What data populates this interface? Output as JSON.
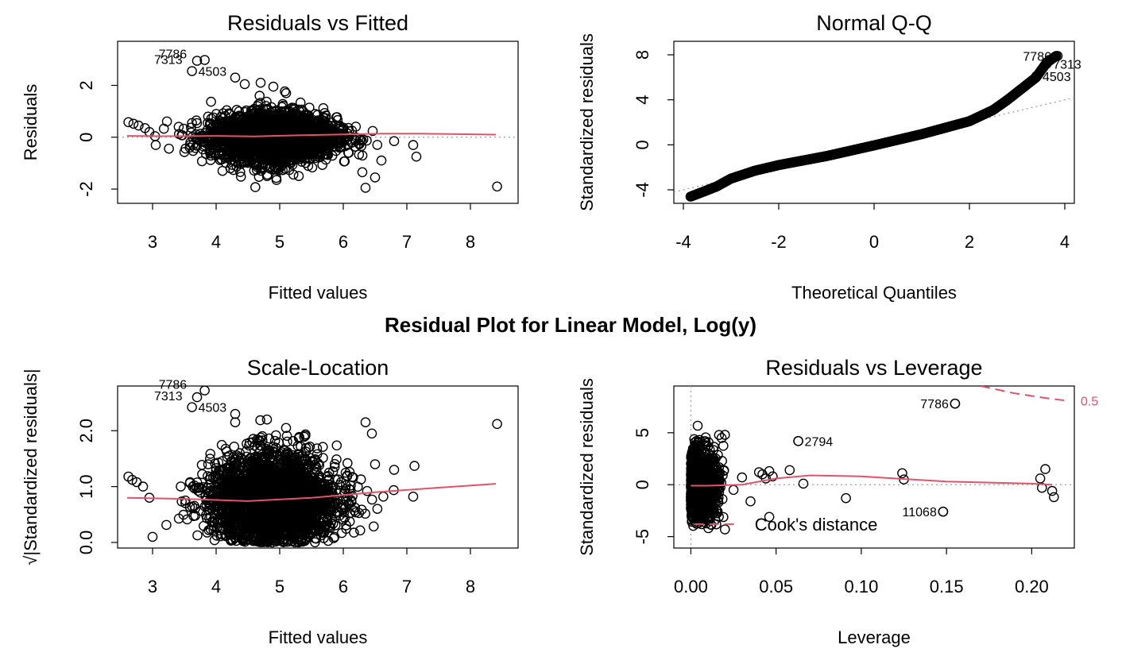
{
  "figure": {
    "main_title": "Residual Plot for Linear Model, Log(y)",
    "colors": {
      "points": "#000000",
      "smooth": "#df536b",
      "reference": "#9e9e9e",
      "cook": "#df536b"
    }
  },
  "chart_data": [
    {
      "type": "scatter",
      "title": "Residuals vs Fitted",
      "xlabel": "Fitted values",
      "ylabel": "Residuals",
      "xlim": [
        2.45,
        8.75
      ],
      "ylim": [
        -2.55,
        3.7
      ],
      "xticks": [
        3,
        4,
        5,
        6,
        7,
        8
      ],
      "yticks": [
        -2,
        0,
        2
      ],
      "reference_line": {
        "y": 0,
        "style": "dotted"
      },
      "cloud": {
        "x_range": [
          3.0,
          6.7
        ],
        "center": 4.9,
        "spread": 0.9,
        "y_sd": 0.45,
        "n": 2600
      },
      "smooth": {
        "x": [
          2.6,
          3.2,
          4.0,
          4.6,
          5.2,
          6.0,
          6.6,
          7.2,
          8.4
        ],
        "y": [
          0.05,
          0.04,
          0.05,
          0.03,
          0.07,
          0.11,
          0.14,
          0.14,
          0.1
        ]
      },
      "outliers": [
        {
          "x": 2.62,
          "y": 0.58
        },
        {
          "x": 2.7,
          "y": 0.52
        },
        {
          "x": 2.78,
          "y": 0.45
        },
        {
          "x": 2.88,
          "y": 0.35
        },
        {
          "x": 2.95,
          "y": 0.2
        },
        {
          "x": 3.05,
          "y": -0.3
        },
        {
          "x": 4.3,
          "y": 2.3
        },
        {
          "x": 4.7,
          "y": 2.1
        },
        {
          "x": 4.9,
          "y": 1.95
        },
        {
          "x": 5.1,
          "y": 1.7
        },
        {
          "x": 4.45,
          "y": 2.05
        },
        {
          "x": 6.3,
          "y": -1.35
        },
        {
          "x": 6.35,
          "y": -1.95
        },
        {
          "x": 6.5,
          "y": -1.55
        },
        {
          "x": 6.6,
          "y": -0.9
        },
        {
          "x": 6.8,
          "y": -0.15
        },
        {
          "x": 7.1,
          "y": -0.3
        },
        {
          "x": 7.15,
          "y": -0.75
        },
        {
          "x": 8.42,
          "y": -1.9
        },
        {
          "x": 4.95,
          "y": -1.65
        },
        {
          "x": 5.3,
          "y": -1.5
        },
        {
          "x": 4.1,
          "y": -1.3
        }
      ],
      "labeled_points": [
        {
          "label": "7786",
          "x": 3.82,
          "y": 2.98
        },
        {
          "label": "7313",
          "x": 3.7,
          "y": 2.95
        },
        {
          "label": "4503",
          "x": 3.62,
          "y": 2.55
        }
      ]
    },
    {
      "type": "scatter",
      "title": "Normal Q-Q",
      "xlabel": "Theoretical Quantiles",
      "ylabel": "Standardized residuals",
      "xlim": [
        -4.2,
        4.2
      ],
      "ylim": [
        -5.2,
        9.2
      ],
      "xticks": [
        -4,
        -2,
        0,
        2,
        4
      ],
      "yticks": [
        -4,
        0,
        4,
        8
      ],
      "reference_line": {
        "slope": 1.0,
        "intercept": 0.0,
        "style": "dotted"
      },
      "qq_curve": {
        "x": [
          -3.85,
          -3.6,
          -3.3,
          -3.0,
          -2.5,
          -2.0,
          -1.0,
          0.0,
          1.0,
          2.0,
          2.5,
          2.8,
          3.1,
          3.4,
          3.62,
          3.82
        ],
        "y": [
          -4.6,
          -4.2,
          -3.7,
          -3.0,
          -2.3,
          -1.8,
          -1.0,
          -0.05,
          0.95,
          2.1,
          3.1,
          4.0,
          5.0,
          6.0,
          7.3,
          7.9
        ]
      },
      "labeled_points": [
        {
          "label": "7786",
          "x": 3.85,
          "y": 7.9
        },
        {
          "label": "7313",
          "x": 3.62,
          "y": 7.2
        },
        {
          "label": "4503",
          "x": 3.4,
          "y": 6.1
        }
      ]
    },
    {
      "type": "scatter",
      "title": "Scale-Location",
      "xlabel": "Fitted values",
      "ylabel": "√|Standardized residuals|",
      "xlim": [
        2.45,
        8.75
      ],
      "ylim": [
        -0.1,
        2.8
      ],
      "xticks": [
        3,
        4,
        5,
        6,
        7,
        8
      ],
      "yticks": [
        0.0,
        1.0,
        2.0
      ],
      "ytick_labels": [
        "0.0",
        "1.0",
        "2.0"
      ],
      "cloud": {
        "x_range": [
          3.0,
          6.8
        ],
        "center": 4.9,
        "spread": 0.9,
        "y_mean": 0.75,
        "y_sd": 0.4,
        "n": 2600
      },
      "smooth": {
        "x": [
          2.6,
          3.5,
          4.5,
          5.5,
          6.5,
          7.5,
          8.4
        ],
        "y": [
          0.8,
          0.78,
          0.74,
          0.8,
          0.9,
          0.98,
          1.05
        ]
      },
      "outliers": [
        {
          "x": 2.62,
          "y": 1.18
        },
        {
          "x": 2.68,
          "y": 1.12
        },
        {
          "x": 2.75,
          "y": 1.08
        },
        {
          "x": 2.85,
          "y": 1.0
        },
        {
          "x": 2.95,
          "y": 0.8
        },
        {
          "x": 3.0,
          "y": 0.1
        },
        {
          "x": 4.3,
          "y": 2.3
        },
        {
          "x": 4.8,
          "y": 2.2
        },
        {
          "x": 5.1,
          "y": 2.05
        },
        {
          "x": 6.35,
          "y": 2.15
        },
        {
          "x": 6.45,
          "y": 1.95
        },
        {
          "x": 6.5,
          "y": 1.4
        },
        {
          "x": 6.8,
          "y": 1.3
        },
        {
          "x": 7.12,
          "y": 1.37
        },
        {
          "x": 7.1,
          "y": 0.82
        },
        {
          "x": 8.42,
          "y": 2.12
        },
        {
          "x": 4.3,
          "y": 2.15
        }
      ],
      "labeled_points": [
        {
          "label": "7786",
          "x": 3.82,
          "y": 2.72
        },
        {
          "label": "7313",
          "x": 3.7,
          "y": 2.6
        },
        {
          "label": "4503",
          "x": 3.62,
          "y": 2.42
        }
      ]
    },
    {
      "type": "scatter",
      "title": "Residuals vs Leverage",
      "xlabel": "Leverage",
      "ylabel": "Standardized residuals",
      "xlim": [
        -0.01,
        0.225
      ],
      "ylim": [
        -6.1,
        9.5
      ],
      "xticks": [
        0.0,
        0.05,
        0.1,
        0.15,
        0.2
      ],
      "xtick_labels": [
        "0.00",
        "0.05",
        "0.10",
        "0.15",
        "0.20"
      ],
      "yticks": [
        -5,
        0,
        5
      ],
      "reference_line": {
        "x": 0,
        "y": 0,
        "style": "dotted"
      },
      "cloud": {
        "x_max": 0.02,
        "y_sd": 1.5,
        "n": 1500
      },
      "smooth": {
        "x": [
          0.0,
          0.01,
          0.03,
          0.05,
          0.07,
          0.1,
          0.15,
          0.2,
          0.212
        ],
        "y": [
          -0.1,
          -0.1,
          0.0,
          0.6,
          0.9,
          0.8,
          0.3,
          0.1,
          0.0
        ]
      },
      "cook_contour": {
        "label": "0.5",
        "x": [
          0.17,
          0.19,
          0.21,
          0.22
        ],
        "y": [
          9.5,
          8.8,
          8.3,
          8.1
        ]
      },
      "legend": {
        "entry": "Cook's distance",
        "position": "bottom-left"
      },
      "outliers": [
        {
          "x": 0.155,
          "y": 7.8
        },
        {
          "x": 0.063,
          "y": 4.2
        },
        {
          "x": 0.148,
          "y": -2.6
        },
        {
          "x": 0.04,
          "y": 1.2
        },
        {
          "x": 0.042,
          "y": 1.0
        },
        {
          "x": 0.044,
          "y": 0.6
        },
        {
          "x": 0.046,
          "y": 1.3
        },
        {
          "x": 0.048,
          "y": 0.8
        },
        {
          "x": 0.058,
          "y": 1.4
        },
        {
          "x": 0.066,
          "y": 0.1
        },
        {
          "x": 0.091,
          "y": -1.3
        },
        {
          "x": 0.124,
          "y": 1.1
        },
        {
          "x": 0.125,
          "y": 0.5
        },
        {
          "x": 0.205,
          "y": 0.6
        },
        {
          "x": 0.208,
          "y": 1.5
        },
        {
          "x": 0.206,
          "y": -0.3
        },
        {
          "x": 0.212,
          "y": -0.6
        },
        {
          "x": 0.213,
          "y": -1.2
        },
        {
          "x": 0.03,
          "y": 0.7
        },
        {
          "x": 0.025,
          "y": -0.5
        },
        {
          "x": 0.035,
          "y": -1.6
        },
        {
          "x": 0.046,
          "y": -3.1
        },
        {
          "x": 0.02,
          "y": 4.8
        },
        {
          "x": 0.018,
          "y": 4.5
        },
        {
          "x": 0.02,
          "y": -4.3
        }
      ],
      "labeled_points": [
        {
          "label": "7786",
          "x": 0.155,
          "y": 7.8
        },
        {
          "label": "2794",
          "x": 0.063,
          "y": 4.2
        },
        {
          "label": "11068",
          "x": 0.148,
          "y": -2.6
        }
      ]
    }
  ]
}
